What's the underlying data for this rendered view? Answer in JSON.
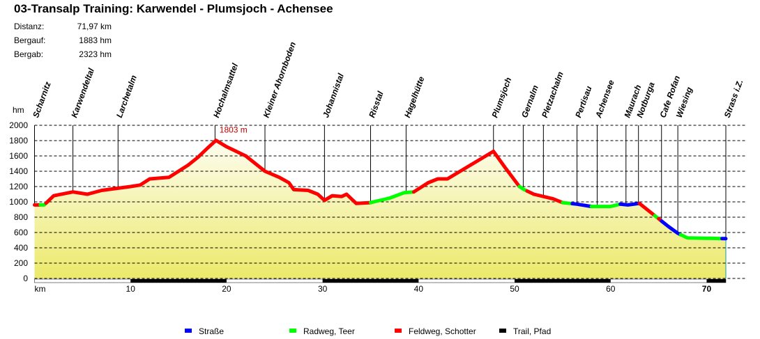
{
  "title": "03-Transalp Training: Karwendel - Plumsjoch - Achensee",
  "stats": [
    {
      "label": "Distanz:",
      "value": "71,97 km"
    },
    {
      "label": "Bergauf:",
      "value": "1883 hm"
    },
    {
      "label": "Bergab:",
      "value": "2323 hm"
    }
  ],
  "chart_data": {
    "type": "area",
    "title": "03-Transalp Training: Karwendel - Plumsjoch - Achensee",
    "xlabel": "km",
    "ylabel": "hm",
    "xlim": [
      0,
      72
    ],
    "ylim": [
      0,
      2000
    ],
    "x_ticks": [
      10,
      20,
      30,
      40,
      50,
      60,
      70
    ],
    "y_ticks": [
      0,
      200,
      400,
      600,
      800,
      1000,
      1200,
      1400,
      1600,
      1800,
      2000
    ],
    "grid": true,
    "profile": {
      "x": [
        0,
        1,
        2,
        4,
        5.5,
        7,
        10,
        11,
        12,
        13,
        14,
        15,
        16,
        17,
        18,
        18.9,
        20,
        22,
        24,
        25.5,
        26.5,
        27,
        28.5,
        29.5,
        30.2,
        31,
        32,
        32.5,
        33.5,
        35,
        37,
        38.5,
        39.5,
        41,
        42,
        43,
        45,
        47,
        47.8,
        49,
        50.5,
        51,
        52,
        54,
        55,
        56.5,
        58,
        60,
        61,
        61.8,
        63,
        64,
        65,
        66,
        67,
        68,
        72
      ],
      "y": [
        960,
        960,
        1080,
        1130,
        1100,
        1150,
        1200,
        1220,
        1300,
        1310,
        1320,
        1400,
        1480,
        1580,
        1700,
        1803,
        1720,
        1600,
        1400,
        1320,
        1250,
        1160,
        1150,
        1100,
        1020,
        1080,
        1070,
        1100,
        980,
        990,
        1050,
        1120,
        1130,
        1250,
        1300,
        1300,
        1450,
        1600,
        1660,
        1450,
        1200,
        1160,
        1100,
        1040,
        990,
        970,
        940,
        940,
        970,
        960,
        980,
        880,
        780,
        680,
        590,
        530,
        520
      ]
    },
    "surface_segments": [
      {
        "from": 0,
        "to": 0.6,
        "type": "Feldweg, Schotter"
      },
      {
        "from": 0.6,
        "to": 1.2,
        "type": "Radweg, Teer"
      },
      {
        "from": 1.2,
        "to": 35,
        "type": "Feldweg, Schotter"
      },
      {
        "from": 35,
        "to": 39.5,
        "type": "Radweg, Teer"
      },
      {
        "from": 39.5,
        "to": 50.5,
        "type": "Feldweg, Schotter"
      },
      {
        "from": 50.5,
        "to": 51.3,
        "type": "Radweg, Teer"
      },
      {
        "from": 51.3,
        "to": 55,
        "type": "Feldweg, Schotter"
      },
      {
        "from": 55,
        "to": 56,
        "type": "Radweg, Teer"
      },
      {
        "from": 56,
        "to": 58,
        "type": "Straße"
      },
      {
        "from": 58,
        "to": 61,
        "type": "Radweg, Teer"
      },
      {
        "from": 61,
        "to": 63,
        "type": "Straße"
      },
      {
        "from": 63,
        "to": 64.6,
        "type": "Feldweg, Schotter"
      },
      {
        "from": 64.6,
        "to": 65,
        "type": "Radweg, Teer"
      },
      {
        "from": 65,
        "to": 65.3,
        "type": "Feldweg, Schotter"
      },
      {
        "from": 65.3,
        "to": 67.3,
        "type": "Straße"
      },
      {
        "from": 67.3,
        "to": 71.6,
        "type": "Radweg, Teer"
      },
      {
        "from": 71.6,
        "to": 72,
        "type": "Straße"
      }
    ],
    "waypoints": [
      {
        "name": "Scharnitz",
        "km": 0
      },
      {
        "name": "Karwendeltal",
        "km": 4.0
      },
      {
        "name": "Larchetalm",
        "km": 8.7
      },
      {
        "name": "Hochalmsattel",
        "km": 18.8
      },
      {
        "name": "Kleiner Ahornboden",
        "km": 24.0
      },
      {
        "name": "Johannistal",
        "km": 30.2
      },
      {
        "name": "Risstal",
        "km": 35.0
      },
      {
        "name": "Hagelhütte",
        "km": 38.7
      },
      {
        "name": "Plumsjoch",
        "km": 47.8
      },
      {
        "name": "Gernalm",
        "km": 50.9
      },
      {
        "name": "Pletzachalm",
        "km": 53.0
      },
      {
        "name": "Pertisau",
        "km": 56.5
      },
      {
        "name": "Achensee",
        "km": 58.6
      },
      {
        "name": "Maurach",
        "km": 61.6
      },
      {
        "name": "Notburga",
        "km": 62.9
      },
      {
        "name": "Cafe Rofan",
        "km": 65.3
      },
      {
        "name": "Wiesing",
        "km": 67.0
      },
      {
        "name": "Strass i.Z.",
        "km": 72
      }
    ],
    "annotation": {
      "km": 18.9,
      "text": "1803 m"
    },
    "legend": [
      {
        "name": "Straße",
        "color": "#0000ff"
      },
      {
        "name": "Radweg, Teer",
        "color": "#00ff00"
      },
      {
        "name": "Feldweg, Schotter",
        "color": "#ff0000"
      },
      {
        "name": "Trail, Pfad",
        "color": "#000000"
      }
    ],
    "legend_placement": "bottom"
  }
}
